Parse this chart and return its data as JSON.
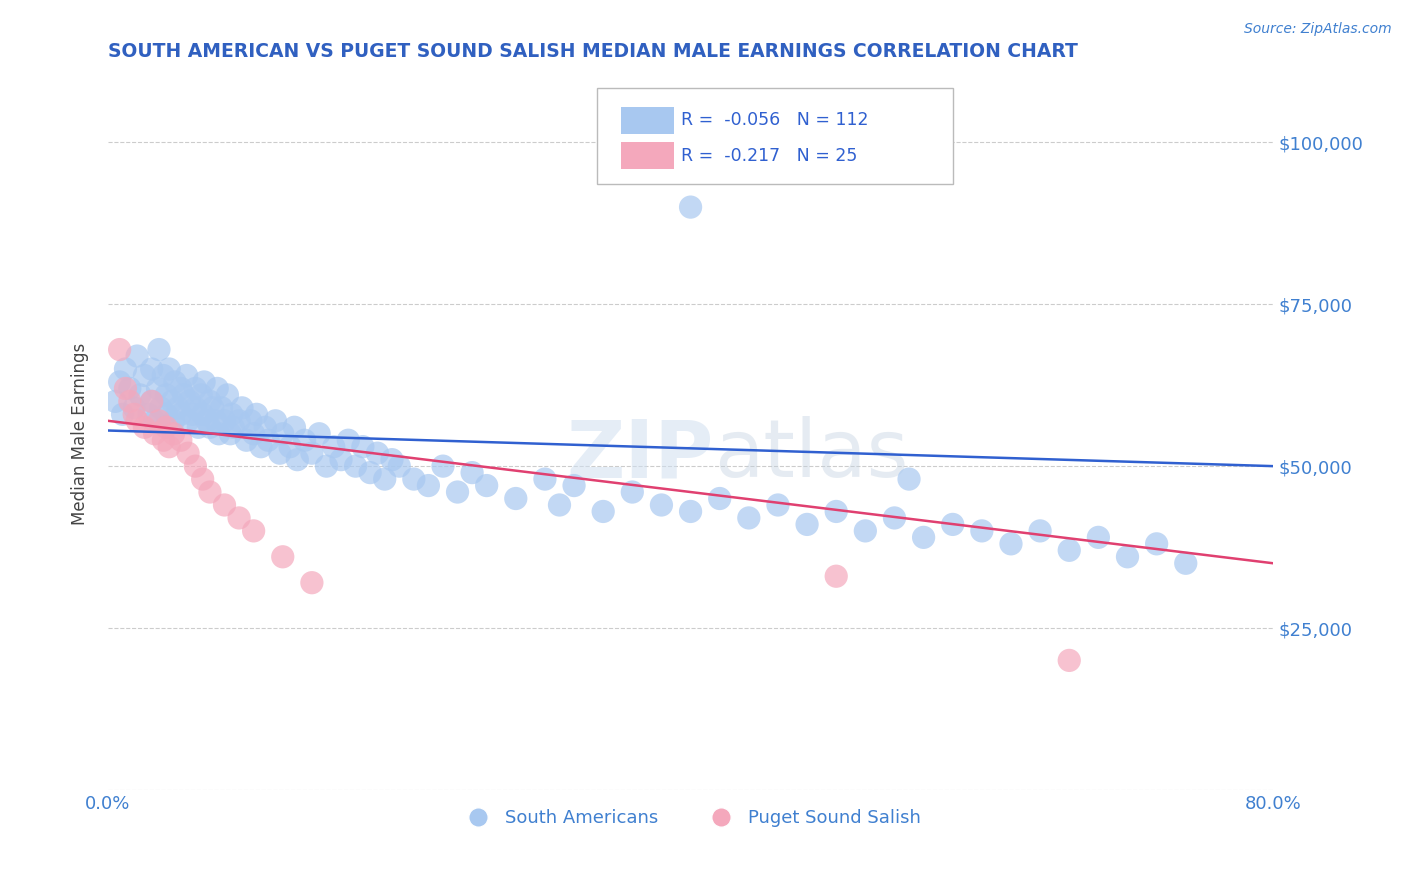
{
  "title": "SOUTH AMERICAN VS PUGET SOUND SALISH MEDIAN MALE EARNINGS CORRELATION CHART",
  "source": "Source: ZipAtlas.com",
  "ylabel": "Median Male Earnings",
  "xlim": [
    0.0,
    0.8
  ],
  "ylim": [
    0,
    110000
  ],
  "xticks": [
    0.0,
    0.1,
    0.2,
    0.3,
    0.4,
    0.5,
    0.6,
    0.7,
    0.8
  ],
  "yticks": [
    0,
    25000,
    50000,
    75000,
    100000
  ],
  "ytick_labels": [
    "",
    "$25,000",
    "$50,000",
    "$75,000",
    "$100,000"
  ],
  "blue_R": -0.056,
  "blue_N": 112,
  "pink_R": -0.217,
  "pink_N": 25,
  "legend_label_blue": "South Americans",
  "legend_label_pink": "Puget Sound Salish",
  "blue_color": "#a8c8f0",
  "pink_color": "#f4a8bc",
  "blue_line_color": "#3060d0",
  "pink_line_color": "#e04070",
  "title_color": "#3060c0",
  "axis_color": "#4080d0",
  "background_color": "#ffffff",
  "grid_color": "#cccccc",
  "blue_x": [
    0.005,
    0.008,
    0.01,
    0.012,
    0.015,
    0.018,
    0.02,
    0.022,
    0.025,
    0.028,
    0.03,
    0.03,
    0.032,
    0.034,
    0.035,
    0.036,
    0.038,
    0.04,
    0.04,
    0.042,
    0.044,
    0.045,
    0.046,
    0.048,
    0.05,
    0.05,
    0.052,
    0.054,
    0.055,
    0.056,
    0.058,
    0.06,
    0.06,
    0.062,
    0.064,
    0.065,
    0.066,
    0.068,
    0.07,
    0.07,
    0.072,
    0.074,
    0.075,
    0.076,
    0.078,
    0.08,
    0.082,
    0.084,
    0.085,
    0.086,
    0.09,
    0.092,
    0.095,
    0.098,
    0.1,
    0.102,
    0.105,
    0.108,
    0.11,
    0.115,
    0.118,
    0.12,
    0.125,
    0.128,
    0.13,
    0.135,
    0.14,
    0.145,
    0.15,
    0.155,
    0.16,
    0.165,
    0.17,
    0.175,
    0.18,
    0.185,
    0.19,
    0.195,
    0.2,
    0.21,
    0.22,
    0.23,
    0.24,
    0.25,
    0.26,
    0.28,
    0.3,
    0.31,
    0.32,
    0.34,
    0.36,
    0.38,
    0.4,
    0.42,
    0.44,
    0.46,
    0.48,
    0.5,
    0.52,
    0.54,
    0.56,
    0.58,
    0.6,
    0.62,
    0.64,
    0.66,
    0.68,
    0.7,
    0.72,
    0.74,
    0.55,
    0.4
  ],
  "blue_y": [
    60000,
    63000,
    58000,
    65000,
    62000,
    59000,
    67000,
    61000,
    64000,
    58000,
    65000,
    60000,
    57000,
    62000,
    68000,
    59000,
    64000,
    61000,
    58000,
    65000,
    60000,
    57000,
    63000,
    59000,
    62000,
    58000,
    61000,
    64000,
    57000,
    60000,
    58000,
    62000,
    59000,
    56000,
    61000,
    58000,
    63000,
    57000,
    60000,
    56000,
    59000,
    57000,
    62000,
    55000,
    59000,
    57000,
    61000,
    55000,
    58000,
    56000,
    57000,
    59000,
    54000,
    57000,
    55000,
    58000,
    53000,
    56000,
    54000,
    57000,
    52000,
    55000,
    53000,
    56000,
    51000,
    54000,
    52000,
    55000,
    50000,
    53000,
    51000,
    54000,
    50000,
    53000,
    49000,
    52000,
    48000,
    51000,
    50000,
    48000,
    47000,
    50000,
    46000,
    49000,
    47000,
    45000,
    48000,
    44000,
    47000,
    43000,
    46000,
    44000,
    43000,
    45000,
    42000,
    44000,
    41000,
    43000,
    40000,
    42000,
    39000,
    41000,
    40000,
    38000,
    40000,
    37000,
    39000,
    36000,
    38000,
    35000,
    48000,
    90000
  ],
  "pink_x": [
    0.008,
    0.012,
    0.015,
    0.018,
    0.02,
    0.025,
    0.03,
    0.032,
    0.035,
    0.038,
    0.04,
    0.042,
    0.045,
    0.05,
    0.055,
    0.06,
    0.065,
    0.07,
    0.08,
    0.09,
    0.1,
    0.12,
    0.14,
    0.5,
    0.66
  ],
  "pink_y": [
    68000,
    62000,
    60000,
    58000,
    57000,
    56000,
    60000,
    55000,
    57000,
    54000,
    56000,
    53000,
    55000,
    54000,
    52000,
    50000,
    48000,
    46000,
    44000,
    42000,
    40000,
    36000,
    32000,
    33000,
    20000
  ]
}
